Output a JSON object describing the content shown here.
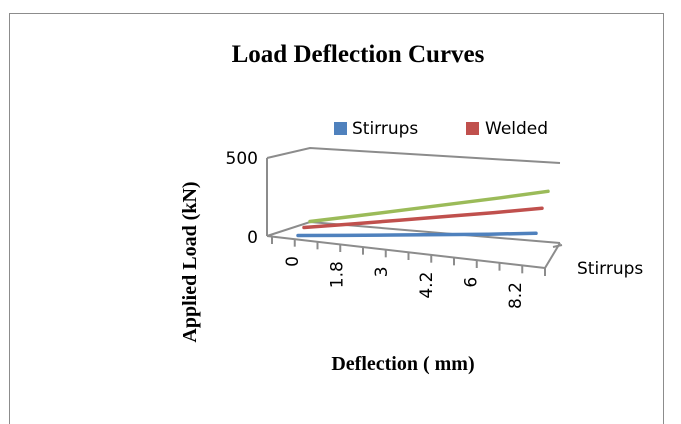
{
  "chart_data": {
    "type": "line",
    "style": "3d",
    "title": "Load Deflection Curves",
    "xlabel": "Deflection ( mm)",
    "ylabel": "Applied Load (kN)",
    "ylim": [
      0,
      500
    ],
    "yticks": [
      "0",
      "500"
    ],
    "categories": [
      "0",
      "1.8",
      "3",
      "4.2",
      "6",
      "8.2"
    ],
    "depth_axis_labels": [
      "Stirrups"
    ],
    "legend": {
      "position": "top",
      "entries": [
        "Stirrups",
        "Welded"
      ]
    },
    "series": [
      {
        "name": "Stirrups",
        "color": "#4f81bd",
        "values": [
          10,
          20,
          35,
          50,
          65,
          90
        ]
      },
      {
        "name": "Welded",
        "color": "#c0504d",
        "values": [
          10,
          20,
          35,
          50,
          65,
          90
        ]
      },
      {
        "color": "#9bbb59",
        "values": [
          10,
          20,
          35,
          50,
          65,
          90
        ]
      }
    ]
  }
}
